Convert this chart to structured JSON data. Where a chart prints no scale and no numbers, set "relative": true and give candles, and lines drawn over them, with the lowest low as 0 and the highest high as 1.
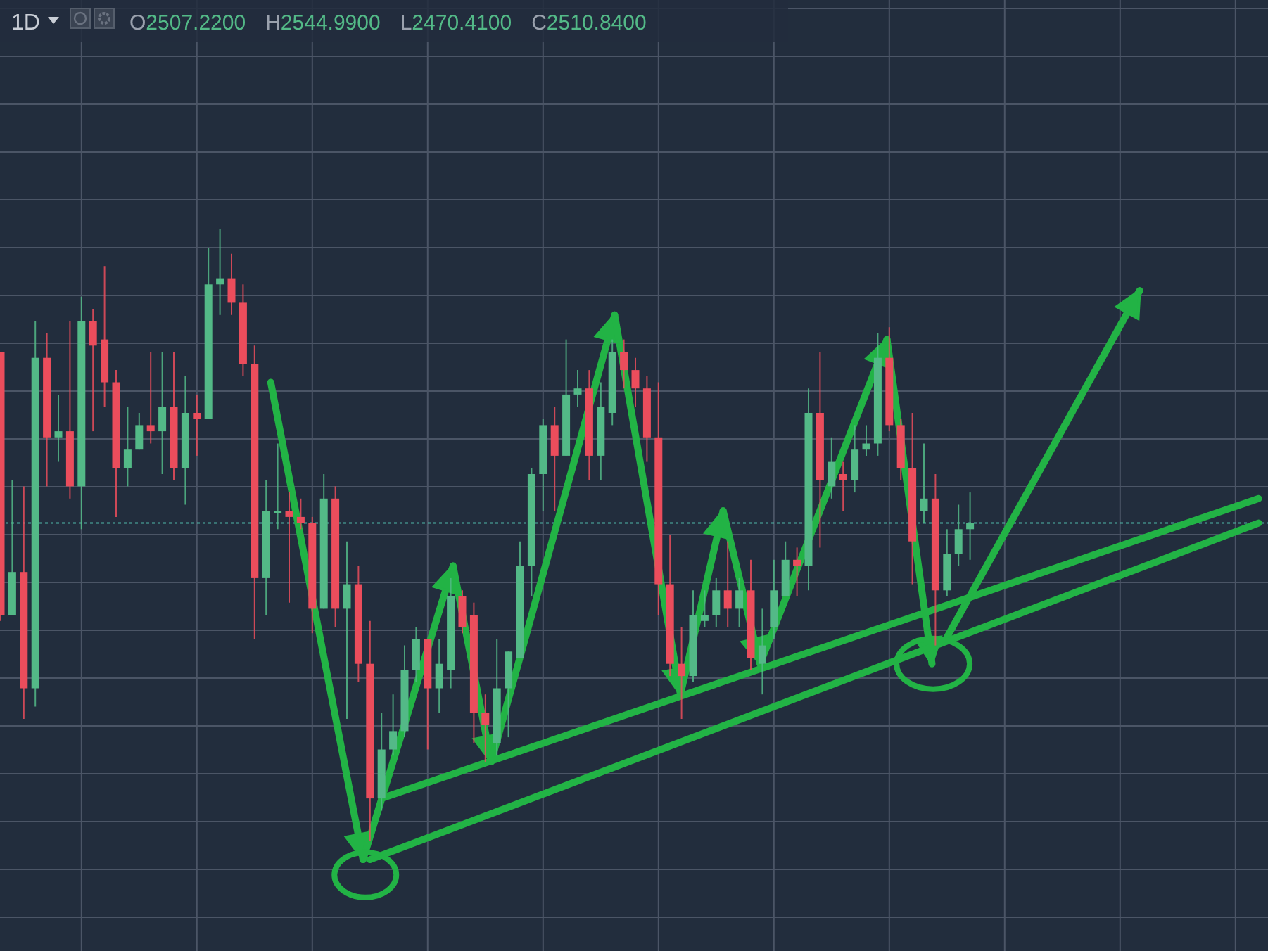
{
  "chart_data": {
    "type": "candlestick",
    "relative": true,
    "title": "1D",
    "grid": true,
    "annotations": [
      "O2507.2200",
      "H2544.9900",
      "L2470.4100",
      "C2510.8400"
    ],
    "series": [
      {
        "type": "line",
        "color": "#22b345",
        "values": [
          null,
          null,
          null,
          null,
          null,
          null,
          null,
          null,
          null,
          null,
          null,
          null,
          null,
          null,
          null,
          null,
          null,
          null,
          null,
          null,
          null,
          null,
          null,
          null,
          null,
          null,
          null,
          null,
          null,
          null,
          null,
          null,
          null,
          0.07,
          null,
          null,
          null,
          null,
          null,
          null,
          null,
          null,
          null,
          null,
          null,
          null,
          null,
          null,
          null,
          null,
          null,
          null,
          null,
          null,
          null,
          null,
          null,
          null,
          null,
          null,
          null,
          null,
          null,
          null,
          null,
          null,
          null,
          null,
          null,
          null,
          null,
          null,
          null,
          null,
          null,
          null,
          null,
          null,
          null,
          null,
          null,
          null,
          null,
          null,
          null,
          null,
          null,
          null,
          null,
          null,
          null,
          null,
          null,
          null,
          null,
          null,
          null,
          null,
          null,
          null,
          null,
          null,
          null,
          null,
          null,
          null,
          null,
          null,
          null,
          0.56
        ]
      },
      {
        "type": "line",
        "color": "#22b345",
        "values": [
          null,
          null,
          null,
          null,
          null,
          null,
          null,
          null,
          null,
          null,
          null,
          null,
          null,
          null,
          null,
          null,
          null,
          null,
          null,
          null,
          null,
          null,
          null,
          null,
          null,
          null,
          null,
          null,
          null,
          null,
          null,
          null,
          -0.03,
          null,
          null,
          null,
          null,
          null,
          null,
          null,
          null,
          null,
          null,
          null,
          null,
          null,
          null,
          null,
          null,
          null,
          null,
          null,
          null,
          null,
          null,
          null,
          null,
          null,
          null,
          null,
          null,
          null,
          null,
          null,
          null,
          null,
          null,
          null,
          null,
          null,
          null,
          null,
          null,
          null,
          null,
          null,
          null,
          null,
          null,
          null,
          null,
          null,
          null,
          null,
          null,
          null,
          null,
          null,
          null,
          null,
          null,
          null,
          null,
          null,
          null,
          null,
          null,
          null,
          null,
          null,
          null,
          null,
          null,
          null,
          null,
          null,
          null,
          null,
          null,
          0.52
        ]
      }
    ],
    "ref_lines": [
      {
        "axis": "y",
        "value": 0.52,
        "color": "#4fb5a8",
        "line_style": "dotted"
      }
    ],
    "categories": [
      null,
      null,
      null,
      null,
      null,
      null,
      null,
      null,
      null,
      null,
      null,
      null,
      null,
      null,
      null,
      null,
      null,
      null,
      null,
      null,
      null,
      null,
      null,
      null,
      null,
      null,
      null,
      null,
      null,
      null,
      null,
      null,
      null,
      null,
      null,
      null,
      null,
      null,
      null,
      null,
      null,
      null,
      null,
      null,
      null,
      null,
      null,
      null,
      null,
      null,
      null,
      null,
      null,
      null,
      null,
      null,
      null,
      null,
      null,
      null,
      null,
      null,
      null,
      null,
      null,
      null,
      null,
      null,
      null,
      null,
      null,
      null,
      null,
      null,
      null,
      null,
      null,
      null,
      null,
      null,
      null,
      null,
      null,
      null,
      null,
      null,
      null,
      null,
      null,
      null,
      null,
      null,
      null,
      null,
      null,
      null,
      null,
      null,
      null,
      null,
      null,
      null,
      null,
      null,
      null,
      null,
      null,
      null,
      null,
      null
    ],
    "ohlc": [
      [
        0.8,
        0.8,
        0.36,
        0.37
      ],
      [
        0.37,
        0.59,
        0.37,
        0.44
      ],
      [
        0.44,
        0.58,
        0.2,
        0.25
      ],
      [
        0.25,
        0.85,
        0.22,
        0.79
      ],
      [
        0.79,
        0.83,
        0.58,
        0.66
      ],
      [
        0.66,
        0.73,
        0.62,
        0.67
      ],
      [
        0.67,
        0.85,
        0.56,
        0.58
      ],
      [
        0.58,
        0.89,
        0.51,
        0.85
      ],
      [
        0.85,
        0.87,
        0.67,
        0.81
      ],
      [
        0.82,
        0.94,
        0.71,
        0.75
      ],
      [
        0.75,
        0.77,
        0.53,
        0.61
      ],
      [
        0.61,
        0.71,
        0.58,
        0.64
      ],
      [
        0.64,
        0.7,
        0.64,
        0.68
      ],
      [
        0.68,
        0.8,
        0.65,
        0.67
      ],
      [
        0.67,
        0.8,
        0.6,
        0.71
      ],
      [
        0.71,
        0.8,
        0.59,
        0.61
      ],
      [
        0.61,
        0.76,
        0.55,
        0.7
      ],
      [
        0.7,
        0.73,
        0.63,
        0.69
      ],
      [
        0.69,
        0.97,
        0.69,
        0.91
      ],
      [
        0.91,
        1.0,
        0.86,
        0.92
      ],
      [
        0.92,
        0.96,
        0.86,
        0.88
      ],
      [
        0.88,
        0.91,
        0.76,
        0.78
      ],
      [
        0.78,
        0.81,
        0.33,
        0.43
      ],
      [
        0.43,
        0.59,
        0.37,
        0.54
      ],
      [
        0.54,
        0.65,
        0.51,
        0.54
      ],
      [
        0.54,
        0.57,
        0.39,
        0.53
      ],
      [
        0.53,
        0.56,
        0.51,
        0.52
      ],
      [
        0.52,
        0.53,
        0.34,
        0.38
      ],
      [
        0.38,
        0.6,
        0.38,
        0.56
      ],
      [
        0.56,
        0.58,
        0.35,
        0.38
      ],
      [
        0.38,
        0.49,
        0.2,
        0.42
      ],
      [
        0.42,
        0.45,
        0.26,
        0.29
      ],
      [
        0.29,
        0.36,
        0,
        0.07
      ],
      [
        0.07,
        0.21,
        0.05,
        0.15
      ],
      [
        0.15,
        0.24,
        0.14,
        0.18
      ],
      [
        0.18,
        0.32,
        0.17,
        0.28
      ],
      [
        0.28,
        0.35,
        0.26,
        0.33
      ],
      [
        0.33,
        0.33,
        0.15,
        0.25
      ],
      [
        0.25,
        0.33,
        0.21,
        0.29
      ],
      [
        0.28,
        0.43,
        0.25,
        0.4
      ],
      [
        0.4,
        0.41,
        0.34,
        0.35
      ],
      [
        0.37,
        0.39,
        0.16,
        0.21
      ],
      [
        0.21,
        0.24,
        0.13,
        0.19
      ],
      [
        0.16,
        0.33,
        0.14,
        0.25
      ],
      [
        0.25,
        0.31,
        0.17,
        0.31
      ],
      [
        0.3,
        0.49,
        0.3,
        0.45
      ],
      [
        0.45,
        0.61,
        0.4,
        0.6
      ],
      [
        0.6,
        0.69,
        0.54,
        0.68
      ],
      [
        0.68,
        0.71,
        0.54,
        0.63
      ],
      [
        0.63,
        0.82,
        0.63,
        0.73
      ],
      [
        0.73,
        0.77,
        0.71,
        0.74
      ],
      [
        0.74,
        0.77,
        0.59,
        0.63
      ],
      [
        0.63,
        0.75,
        0.59,
        0.71
      ],
      [
        0.7,
        0.82,
        0.68,
        0.8
      ],
      [
        0.8,
        0.82,
        0.74,
        0.77
      ],
      [
        0.77,
        0.79,
        0.71,
        0.74
      ],
      [
        0.74,
        0.76,
        0.62,
        0.66
      ],
      [
        0.66,
        0.75,
        0.37,
        0.42
      ],
      [
        0.42,
        0.5,
        0.27,
        0.29
      ],
      [
        0.29,
        0.35,
        0.2,
        0.27
      ],
      [
        0.27,
        0.41,
        0.26,
        0.37
      ],
      [
        0.36,
        0.41,
        0.35,
        0.37
      ],
      [
        0.37,
        0.43,
        0.35,
        0.41
      ],
      [
        0.41,
        0.49,
        0.35,
        0.38
      ],
      [
        0.38,
        0.43,
        0.35,
        0.41
      ],
      [
        0.41,
        0.46,
        0.28,
        0.3
      ],
      [
        0.29,
        0.38,
        0.24,
        0.32
      ],
      [
        0.35,
        0.46,
        0.33,
        0.41
      ],
      [
        0.4,
        0.49,
        0.4,
        0.46
      ],
      [
        0.46,
        0.48,
        0.4,
        0.45
      ],
      [
        0.45,
        0.74,
        0.41,
        0.7
      ],
      [
        0.7,
        0.8,
        0.48,
        0.59
      ],
      [
        0.58,
        0.66,
        0.56,
        0.62
      ],
      [
        0.6,
        0.62,
        0.54,
        0.59
      ],
      [
        0.59,
        0.68,
        0.57,
        0.64
      ],
      [
        0.64,
        0.68,
        0.63,
        0.65
      ],
      [
        0.65,
        0.83,
        0.63,
        0.79
      ],
      [
        0.79,
        0.84,
        0.67,
        0.68
      ],
      [
        0.68,
        0.69,
        0.59,
        0.61
      ],
      [
        0.61,
        0.7,
        0.42,
        0.49
      ],
      [
        0.54,
        0.65,
        0.52,
        0.56
      ],
      [
        0.56,
        0.6,
        0.32,
        0.41
      ],
      [
        0.41,
        0.51,
        0.4,
        0.47
      ],
      [
        0.47,
        0.55,
        0.45,
        0.51
      ],
      [
        0.51,
        0.57,
        0.46,
        0.52
      ],
      null,
      null,
      null,
      null,
      null,
      null,
      null,
      null,
      null,
      null,
      null,
      null,
      null,
      null,
      null,
      null,
      null,
      null,
      null,
      null,
      null,
      null,
      null,
      null,
      null
    ]
  }
}
